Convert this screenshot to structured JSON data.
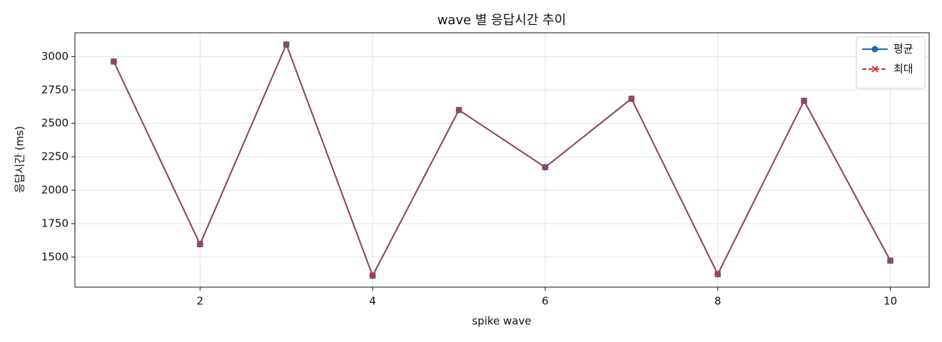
{
  "chart_data": {
    "type": "line",
    "title": "wave 별 응답시간 추이",
    "x_label": "spike wave",
    "y_label": "응답시간 (ms)",
    "x": [
      1,
      2,
      3,
      4,
      5,
      6,
      7,
      8,
      9,
      10
    ],
    "series": [
      {
        "name": "평균",
        "color": "#1f65b8",
        "marker": "o",
        "linestyle": "solid",
        "values": [
          2963,
          1596,
          3091,
          1361,
          2600,
          2172,
          2685,
          1372,
          2669,
          1473
        ]
      },
      {
        "name": "최대",
        "color": "#c8363a",
        "marker": "x",
        "linestyle": "dashed",
        "values": [
          2963,
          1596,
          3091,
          1361,
          2600,
          2172,
          2685,
          1372,
          2669,
          1473
        ]
      }
    ],
    "xlim": [
      0.55,
      10.45
    ],
    "xticks": [
      2,
      4,
      6,
      8,
      10
    ],
    "ylim": [
      1275,
      3178
    ],
    "yticks": [
      1500,
      1750,
      2000,
      2250,
      2500,
      2750,
      3000
    ],
    "grid": true,
    "legend": "upper right"
  }
}
